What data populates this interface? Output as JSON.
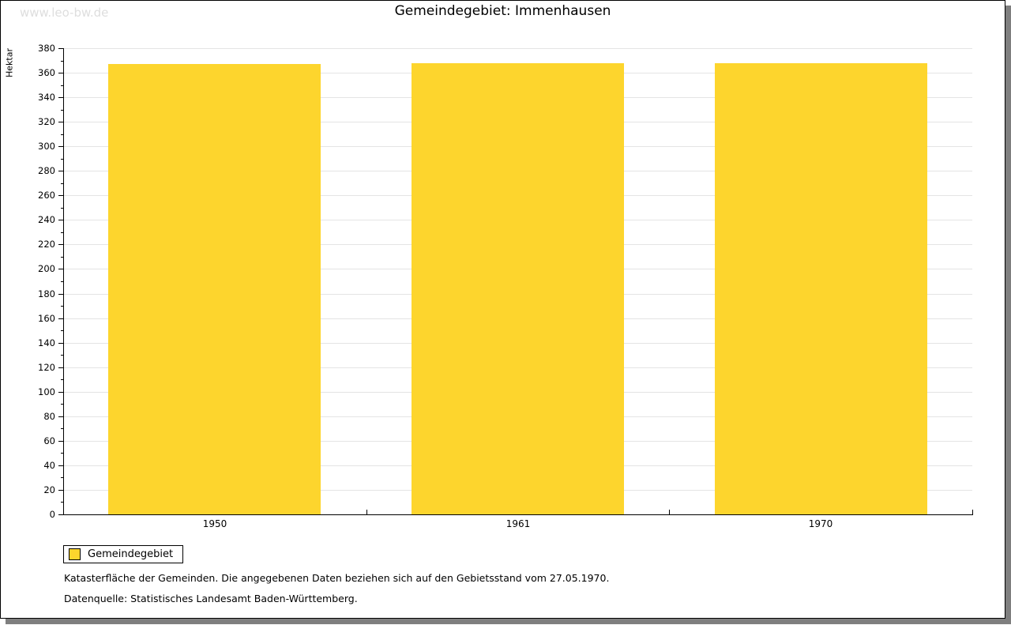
{
  "watermark": "www.leo-bw.de",
  "title": "Gemeindegebiet: Immenhausen",
  "chart_data": {
    "type": "bar",
    "title": "Gemeindegebiet: Immenhausen",
    "categories": [
      "1950",
      "1961",
      "1970"
    ],
    "series": [
      {
        "name": "Gemeindegebiet",
        "values": [
          367,
          368,
          368
        ]
      }
    ],
    "xlabel": "",
    "ylabel": "Hektar",
    "ylim": [
      0,
      380
    ],
    "ytick_step": 20,
    "minor_tick_step": 10,
    "grid": true,
    "legend_position": "bottom-left",
    "bar_color": "#FDD52D"
  },
  "legend": {
    "items": [
      {
        "label": "Gemeindegebiet",
        "color": "#FDD52D"
      }
    ]
  },
  "footer": {
    "line1": "Katasterfläche der Gemeinden. Die angegebenen Daten beziehen sich auf den Gebietsstand vom 27.05.1970.",
    "line2": "Datenquelle: Statistisches Landesamt Baden-Württemberg."
  },
  "colors": {
    "bar": "#FDD52D",
    "grid": "#E4E4E4",
    "axis": "#000000",
    "watermark": "#DEDEDE",
    "shadow": "#7F7F7F"
  }
}
